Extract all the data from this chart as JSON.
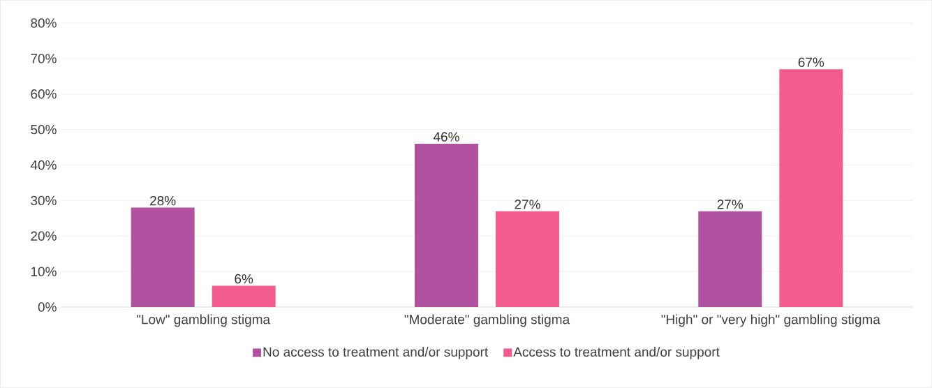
{
  "chart_data": {
    "type": "bar",
    "categories": [
      "\"Low\" gambling stigma",
      "\"Moderate\" gambling stigma",
      "\"High\" or \"very high\" gambling stigma"
    ],
    "series": [
      {
        "name": "No access to treatment and/or support",
        "color": "#b052a0",
        "values": [
          28,
          46,
          27
        ],
        "value_labels": [
          "28%",
          "46%",
          "27%"
        ]
      },
      {
        "name": "Access to treatment and/or support",
        "color": "#f25c8f",
        "values": [
          6,
          27,
          67
        ],
        "value_labels": [
          "6%",
          "27%",
          "67%"
        ]
      }
    ],
    "ylim": [
      0,
      80
    ],
    "yticks": [
      {
        "value": 0,
        "label": "0%"
      },
      {
        "value": 10,
        "label": "10%"
      },
      {
        "value": 20,
        "label": "20%"
      },
      {
        "value": 30,
        "label": "30%"
      },
      {
        "value": 40,
        "label": "40%"
      },
      {
        "value": 50,
        "label": "50%"
      },
      {
        "value": 60,
        "label": "60%"
      },
      {
        "value": 70,
        "label": "70%"
      },
      {
        "value": 80,
        "label": "80%"
      }
    ],
    "grid": "y",
    "legend": "bottom"
  }
}
